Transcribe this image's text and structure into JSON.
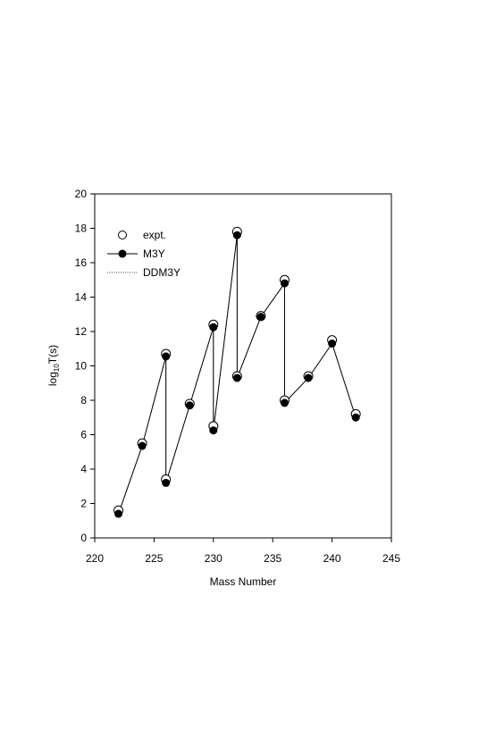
{
  "chart_data": {
    "type": "line",
    "xlabel": "Mass Number",
    "ylabel_main": "log",
    "ylabel_sub": "10",
    "ylabel_rest": "T(s)",
    "xlim": [
      220,
      245
    ],
    "ylim": [
      0,
      20
    ],
    "xticks": [
      220,
      225,
      230,
      235,
      240,
      245
    ],
    "yticks": [
      0,
      2,
      4,
      6,
      8,
      10,
      12,
      14,
      16,
      18,
      20
    ],
    "legend_position": "top-left",
    "series": [
      {
        "name": "expt.",
        "marker": "open-circle",
        "line": "none",
        "x": [
          222,
          224,
          226,
          226,
          228,
          230,
          230,
          232,
          232,
          234,
          236,
          236,
          238,
          240,
          242
        ],
        "y": [
          1.6,
          5.5,
          10.7,
          3.4,
          7.8,
          12.4,
          6.5,
          17.8,
          9.4,
          12.9,
          15.0,
          8.0,
          9.4,
          11.5,
          7.2
        ]
      },
      {
        "name": "M3Y",
        "marker": "filled-circle",
        "line": "solid",
        "x": [
          222,
          224,
          226,
          226,
          228,
          230,
          230,
          232,
          232,
          234,
          236,
          236,
          238,
          240,
          242
        ],
        "y": [
          1.4,
          5.35,
          10.55,
          3.2,
          7.7,
          12.25,
          6.25,
          17.6,
          9.3,
          12.85,
          14.8,
          7.85,
          9.3,
          11.3,
          7.0
        ]
      },
      {
        "name": "DDM3Y",
        "marker": "none",
        "line": "dotted",
        "x": [
          222,
          224,
          226,
          226,
          228,
          230,
          230,
          232,
          232,
          234,
          236,
          236,
          238,
          240,
          242
        ],
        "y": [
          1.4,
          5.35,
          10.55,
          3.2,
          7.7,
          12.25,
          6.25,
          17.6,
          9.3,
          12.85,
          14.8,
          7.85,
          9.3,
          11.3,
          7.0
        ]
      }
    ]
  }
}
